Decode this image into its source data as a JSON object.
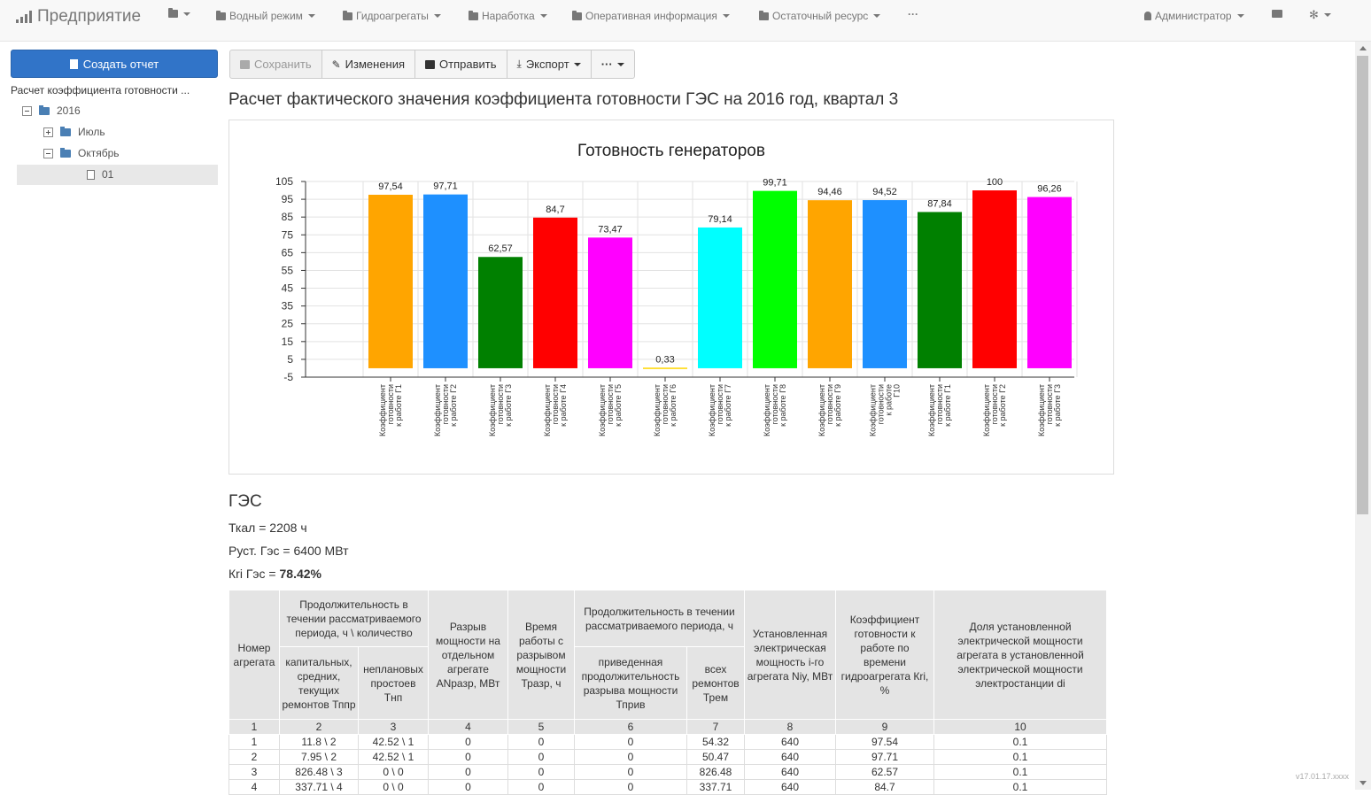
{
  "navbar": {
    "brand": "Предприятие",
    "items": [
      "Водный режим",
      "Гидроагрегаты",
      "Наработка",
      "Оперативная информация",
      "Остаточный ресурс"
    ],
    "more": "···",
    "user": "Администратор"
  },
  "sidebar": {
    "create_button": "Создать отчет",
    "tree_title": "Расчет коэффициента готовности ...",
    "tree": {
      "year": "2016",
      "month1": "Июль",
      "month2": "Октябрь",
      "file": "01"
    }
  },
  "toolbar": {
    "save": "Сохранить",
    "changes": "Изменения",
    "send": "Отправить",
    "export": "Экспорт",
    "more": "···"
  },
  "page_title": "Расчет фактического значения коэффициента готовности ГЭС на 2016 год, квартал 3",
  "chart_data": {
    "type": "bar",
    "title": "Готовность генераторов",
    "categories": [
      [
        "Коэффициент",
        "готовности",
        "к работе Г1"
      ],
      [
        "Коэффициент",
        "готовности",
        "к работе Г2"
      ],
      [
        "Коэффициент",
        "готовности",
        "к работе Г3"
      ],
      [
        "Коэффициент",
        "готовности",
        "к работе Г4"
      ],
      [
        "Коэффициент",
        "готовности",
        "к работе Г5"
      ],
      [
        "Коэффициент",
        "готовности",
        "к работе Г6"
      ],
      [
        "Коэффициент",
        "готовности",
        "к работе Г7"
      ],
      [
        "Коэффициент",
        "готовности",
        "к работе Г8"
      ],
      [
        "Коэффициент",
        "готовности",
        "к работе Г9"
      ],
      [
        "Коэффициент",
        "готовности",
        "к работе",
        "Г10"
      ],
      [
        "Коэффициент",
        "готовности",
        "к работе Г1"
      ],
      [
        "Коэффициент",
        "готовности",
        "к работе Г2"
      ],
      [
        "Коэффициент",
        "готовности",
        "к работе Г3"
      ]
    ],
    "values": [
      97.54,
      97.71,
      62.57,
      84.7,
      73.47,
      0.33,
      79.14,
      99.71,
      94.46,
      94.52,
      87.84,
      100,
      96.26
    ],
    "labels": [
      "97,54",
      "97,71",
      "62,57",
      "84,7",
      "73,47",
      "0,33",
      "79,14",
      "99,71",
      "94,46",
      "94,52",
      "87,84",
      "100",
      "96,26"
    ],
    "colors": [
      "#ffa500",
      "#1e90ff",
      "#008000",
      "#ff0000",
      "#ff00ff",
      "#ffd700",
      "#00ffff",
      "#00ff00",
      "#ffa500",
      "#1e90ff",
      "#008000",
      "#ff0000",
      "#ff00ff"
    ],
    "yticks": [
      -5,
      5,
      15,
      25,
      35,
      45,
      55,
      65,
      75,
      85,
      95,
      105
    ],
    "ylim": [
      -5,
      105
    ]
  },
  "hes": {
    "title": "ГЭС",
    "tkal": "Ткал = 2208 ч",
    "pust": "Руст. Гэс = 6400 МВт",
    "kri_label": "Кri Гэс = ",
    "kri_value": "78.42%"
  },
  "table": {
    "h_num": "Номер агрегата",
    "h_group1": "Продолжительность в течении рассматриваемого периода, ч \\ количество",
    "h_cap": "капитальных, средних, текущих ремонтов Тппр",
    "h_unpl": "неплановых простоев Тнп",
    "h_gap": "Разрыв мощности на отдельном агрегате ANразр, МВт",
    "h_time": "Время работы с разрывом мощности Тразр, ч",
    "h_group2": "Продолжительность в течении рассматриваемого периода, ч",
    "h_red": "приведенная продолжительность разрыва мощности Тприв",
    "h_all": "всех ремонтов Трем",
    "h_inst": "Установленная электрическая мощность i-го агрегата Niy, МВт",
    "h_coef": "Коэффициент готовности к работе по времени гидроагрегата Кri, %",
    "h_share": "Доля установленной электрической мощности агрегата в установленной электрической мощности электростанции di",
    "col_numbers": [
      "1",
      "2",
      "3",
      "4",
      "5",
      "6",
      "7",
      "8",
      "9",
      "10"
    ],
    "rows": [
      [
        "1",
        "11.8 \\ 2",
        "42.52 \\ 1",
        "0",
        "0",
        "0",
        "54.32",
        "640",
        "97.54",
        "0.1"
      ],
      [
        "2",
        "7.95 \\ 2",
        "42.52 \\ 1",
        "0",
        "0",
        "0",
        "50.47",
        "640",
        "97.71",
        "0.1"
      ],
      [
        "3",
        "826.48 \\ 3",
        "0 \\ 0",
        "0",
        "0",
        "0",
        "826.48",
        "640",
        "62.57",
        "0.1"
      ],
      [
        "4",
        "337.71 \\ 4",
        "0 \\ 0",
        "0",
        "0",
        "0",
        "337.71",
        "640",
        "84.7",
        "0.1"
      ]
    ]
  },
  "version": "v17.01.17.xxxx"
}
